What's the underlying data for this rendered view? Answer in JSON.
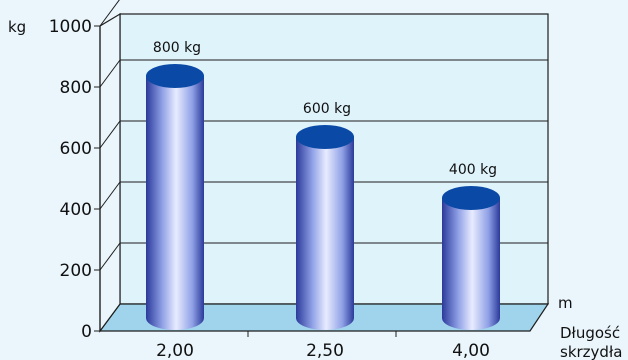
{
  "chart_data": {
    "type": "bar",
    "title_fragment": "",
    "ylabel": "kg",
    "xlabel_unit": "m",
    "xlabel": [
      "Długość",
      "skrzydła"
    ],
    "categories": [
      "2,00",
      "2,50",
      "4,00"
    ],
    "values": [
      800,
      600,
      400
    ],
    "data_labels": [
      "800 kg",
      "600 kg",
      "400 kg"
    ],
    "yticks": [
      "0",
      "200",
      "400",
      "600",
      "800",
      "1000"
    ],
    "ylim": [
      0,
      1000
    ],
    "grid": true,
    "bar_style": "3d-cylinder",
    "colors": {
      "bar_light": "#e8ecff",
      "bar_mid": "#8fa0e6",
      "bar_dark": "#2b3a9a",
      "bar_top": "#0a4aa6",
      "panel": "#dff3fb",
      "floor": "#9fd4ec"
    }
  }
}
